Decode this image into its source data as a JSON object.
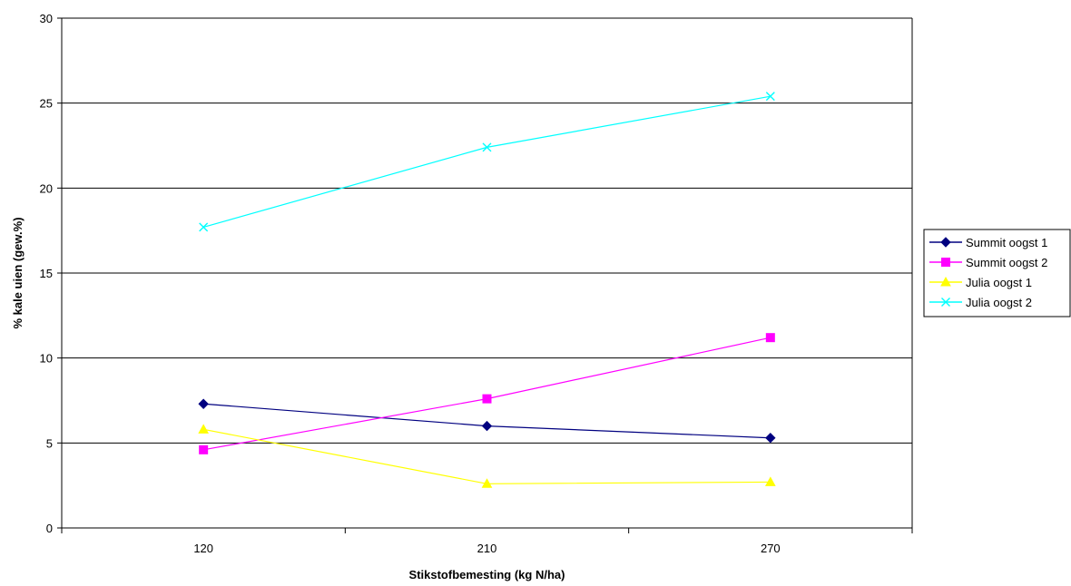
{
  "chart_data": {
    "type": "line",
    "title": "",
    "xlabel": "Stikstofbemesting (kg N/ha)",
    "ylabel": "% kale uien (gew.%)",
    "categories": [
      "120",
      "210",
      "270"
    ],
    "ylim": [
      0,
      30
    ],
    "yticks": [
      "0",
      "5",
      "10",
      "15",
      "20",
      "25",
      "30"
    ],
    "grid": true,
    "legend_position": "right",
    "series": [
      {
        "name": "Summit oogst 1",
        "values": [
          7.3,
          6.0,
          5.3
        ],
        "color": "#000080",
        "marker": "diamond"
      },
      {
        "name": "Summit oogst 2",
        "values": [
          4.6,
          7.6,
          11.2
        ],
        "color": "#ff00ff",
        "marker": "square"
      },
      {
        "name": "Julia oogst 1",
        "values": [
          5.8,
          2.6,
          2.7
        ],
        "color": "#ffff00",
        "marker": "triangle"
      },
      {
        "name": "Julia oogst 2",
        "values": [
          17.7,
          22.4,
          25.4
        ],
        "color": "#00ffff",
        "marker": "x"
      }
    ]
  }
}
